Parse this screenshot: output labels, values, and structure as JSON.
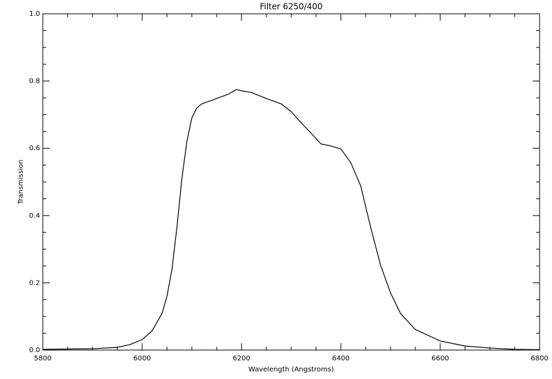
{
  "chart_data": {
    "type": "line",
    "title": "Filter 6250/400",
    "x_label": "Wavelength (Angstroms)",
    "y_label": "Transmission",
    "series": [
      {
        "name": null,
        "color": "#000000",
        "x": [
          5800,
          5900,
          5950,
          5975,
          6000,
          6020,
          6040,
          6050,
          6060,
          6070,
          6080,
          6090,
          6100,
          6110,
          6120,
          6150,
          6175,
          6190,
          6200,
          6220,
          6250,
          6280,
          6300,
          6320,
          6340,
          6360,
          6380,
          6400,
          6420,
          6440,
          6460,
          6480,
          6500,
          6520,
          6550,
          6600,
          6650,
          6700,
          6750,
          6800
        ],
        "values": [
          0.002,
          0.004,
          0.008,
          0.016,
          0.031,
          0.057,
          0.109,
          0.16,
          0.24,
          0.365,
          0.51,
          0.62,
          0.69,
          0.72,
          0.732,
          0.748,
          0.762,
          0.775,
          0.771,
          0.766,
          0.748,
          0.732,
          0.709,
          0.676,
          0.645,
          0.613,
          0.607,
          0.598,
          0.557,
          0.488,
          0.365,
          0.252,
          0.17,
          0.109,
          0.061,
          0.027,
          0.012,
          0.006,
          0.002,
          0.001
        ]
      }
    ],
    "xlim": [
      5800,
      6800
    ],
    "xticks": [
      5800,
      6000,
      6200,
      6400,
      6600,
      6800
    ],
    "ylim": [
      0,
      1
    ],
    "yticks": [
      {
        "value": 0,
        "label": "0.0"
      },
      0.2,
      0.4,
      0.6,
      0.8,
      {
        "value": 1,
        "label": "1.0"
      }
    ],
    "xminor": 4,
    "yminor": 4,
    "grid": false
  }
}
